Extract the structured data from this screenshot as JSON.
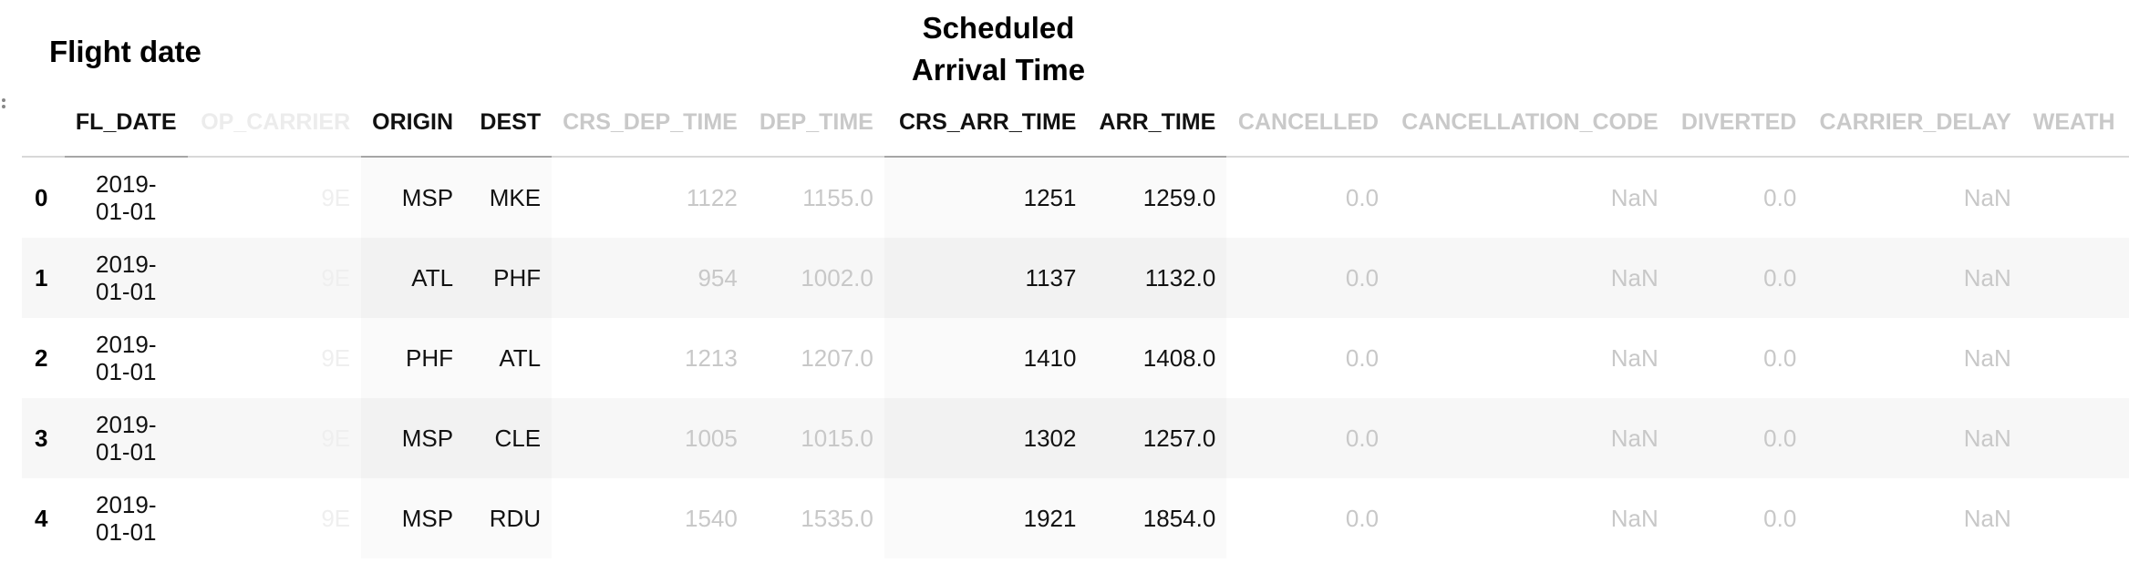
{
  "annotations": {
    "flight_date": "Flight date",
    "scheduled_arrival_line1": "Scheduled",
    "scheduled_arrival_line2": "Arrival Time"
  },
  "columns": [
    "FL_DATE",
    "OP_CARRIER",
    "ORIGIN",
    "DEST",
    "CRS_DEP_TIME",
    "DEP_TIME",
    "CRS_ARR_TIME",
    "ARR_TIME",
    "CANCELLED",
    "CANCELLATION_CODE",
    "DIVERTED",
    "CARRIER_DELAY",
    "WEATH"
  ],
  "rows": [
    {
      "idx": "0",
      "date_1": "2019-",
      "date_2": "01-01",
      "carrier": "9E",
      "origin": "MSP",
      "dest": "MKE",
      "crs_dep": "1122",
      "dep": "1155.0",
      "crs_arr": "1251",
      "arr": "1259.0",
      "cancelled": "0.0",
      "code": "NaN",
      "diverted": "0.0",
      "carrier_delay": "NaN"
    },
    {
      "idx": "1",
      "date_1": "2019-",
      "date_2": "01-01",
      "carrier": "9E",
      "origin": "ATL",
      "dest": "PHF",
      "crs_dep": "954",
      "dep": "1002.0",
      "crs_arr": "1137",
      "arr": "1132.0",
      "cancelled": "0.0",
      "code": "NaN",
      "diverted": "0.0",
      "carrier_delay": "NaN"
    },
    {
      "idx": "2",
      "date_1": "2019-",
      "date_2": "01-01",
      "carrier": "9E",
      "origin": "PHF",
      "dest": "ATL",
      "crs_dep": "1213",
      "dep": "1207.0",
      "crs_arr": "1410",
      "arr": "1408.0",
      "cancelled": "0.0",
      "code": "NaN",
      "diverted": "0.0",
      "carrier_delay": "NaN"
    },
    {
      "idx": "3",
      "date_1": "2019-",
      "date_2": "01-01",
      "carrier": "9E",
      "origin": "MSP",
      "dest": "CLE",
      "crs_dep": "1005",
      "dep": "1015.0",
      "crs_arr": "1302",
      "arr": "1257.0",
      "cancelled": "0.0",
      "code": "NaN",
      "diverted": "0.0",
      "carrier_delay": "NaN"
    },
    {
      "idx": "4",
      "date_1": "2019-",
      "date_2": "01-01",
      "carrier": "9E",
      "origin": "MSP",
      "dest": "RDU",
      "crs_dep": "1540",
      "dep": "1535.0",
      "crs_arr": "1921",
      "arr": "1854.0",
      "cancelled": "0.0",
      "code": "NaN",
      "diverted": "0.0",
      "carrier_delay": "NaN"
    }
  ]
}
